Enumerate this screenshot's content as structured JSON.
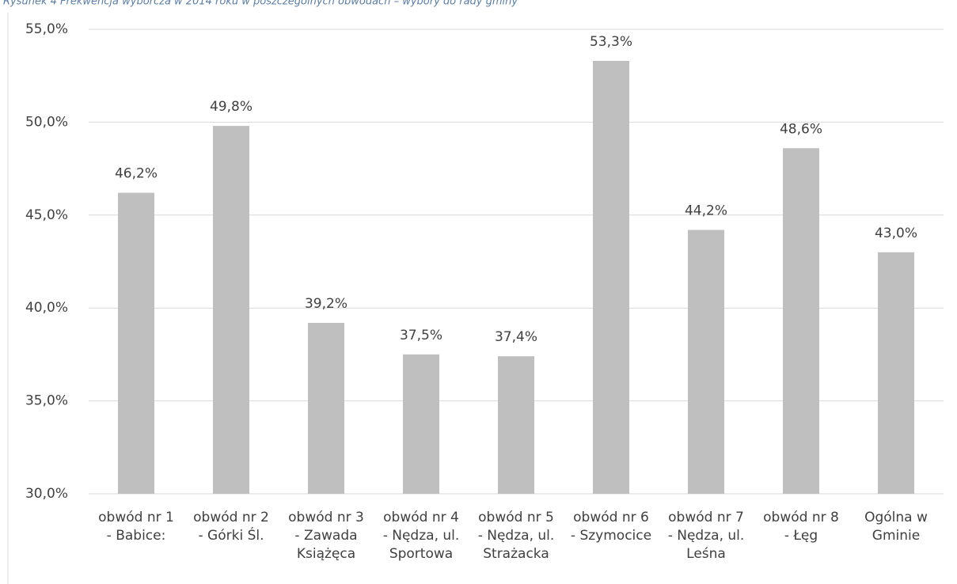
{
  "chart_data": {
    "type": "bar",
    "title": "Rysunek 4 Frekwencja wyborcza w 2014 roku w poszczególnych obwodach – wybory do rady gminy",
    "categories": [
      [
        "obwód nr 1",
        "- Babice:"
      ],
      [
        "obwód nr 2",
        "- Górki Śl."
      ],
      [
        "obwód nr 3",
        "- Zawada",
        "Książęca"
      ],
      [
        "obwód nr 4",
        "- Nędza, ul.",
        "Sportowa"
      ],
      [
        "obwód nr 5",
        "- Nędza, ul.",
        "Strażacka"
      ],
      [
        "obwód nr 6",
        "- Szymocice"
      ],
      [
        "obwód nr 7",
        "- Nędza, ul.",
        "Leśna"
      ],
      [
        "obwód nr 8",
        "- Łęg"
      ],
      [
        "Ogólna w",
        "Gminie"
      ]
    ],
    "values": [
      46.2,
      49.8,
      39.2,
      37.5,
      37.4,
      53.3,
      44.2,
      48.6,
      43.0
    ],
    "value_labels": [
      "46,2%",
      "49,8%",
      "39,2%",
      "37,5%",
      "37,4%",
      "53,3%",
      "44,2%",
      "48,6%",
      "43,0%"
    ],
    "color": "#bfbfbf",
    "ylim": [
      30,
      55
    ],
    "yticks": [
      {
        "value": 30,
        "label": "30,0%"
      },
      {
        "value": 35,
        "label": "35,0%"
      },
      {
        "value": 40,
        "label": "40,0%"
      },
      {
        "value": 45,
        "label": "45,0%"
      },
      {
        "value": 50,
        "label": "50,0%"
      },
      {
        "value": 55,
        "label": "55,0%"
      }
    ],
    "grid": true
  }
}
